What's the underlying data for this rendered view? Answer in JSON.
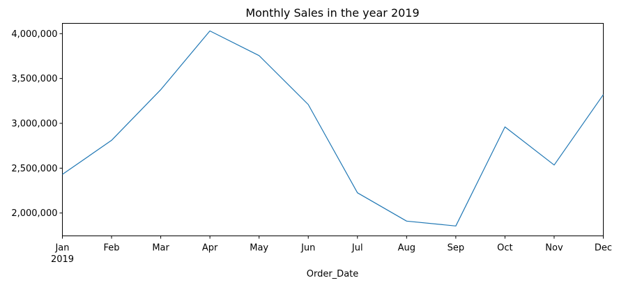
{
  "chart_data": {
    "type": "line",
    "title": "Monthly Sales in the year 2019",
    "xlabel": "Order_Date",
    "ylabel": "",
    "x": [
      "Jan",
      "Feb",
      "Mar",
      "Apr",
      "May",
      "Jun",
      "Jul",
      "Aug",
      "Sep",
      "Oct",
      "Nov",
      "Dec"
    ],
    "x_secondary_label": "2019",
    "series": [
      {
        "values": [
          2430000,
          2810000,
          3375000,
          4030000,
          3755000,
          3210000,
          2225000,
          1910000,
          1855000,
          2960000,
          2535000,
          3320000
        ],
        "color": "#1f77b4"
      }
    ],
    "ylim": [
      1745000,
      4115000
    ],
    "yticks": [
      2000000,
      2500000,
      3000000,
      3500000,
      4000000
    ],
    "ytick_labels": [
      "2,000,000",
      "2,500,000",
      "3,000,000",
      "3,500,000",
      "4,000,000"
    ],
    "grid": false,
    "legend": "none"
  }
}
